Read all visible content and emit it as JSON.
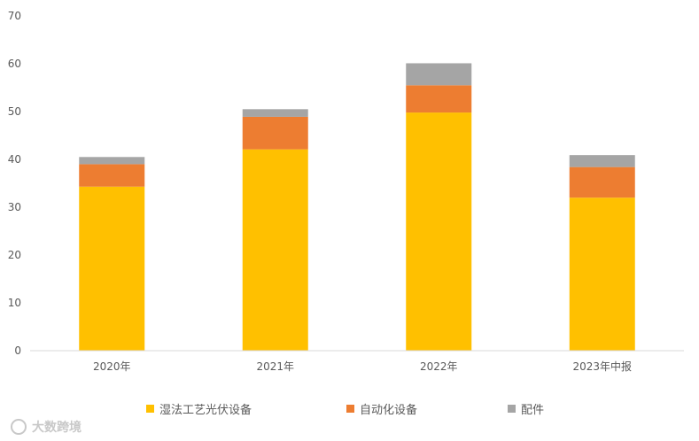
{
  "chart_data": {
    "type": "bar",
    "stacked": true,
    "categories": [
      "2020年",
      "2021年",
      "2022年",
      "2023年中报"
    ],
    "series": [
      {
        "name": "湿法工艺光伏设备",
        "color": "#FFC000",
        "values": [
          34.3,
          42.1,
          49.8,
          32.0
        ]
      },
      {
        "name": "自动化设备",
        "color": "#ED7D31",
        "values": [
          4.7,
          6.8,
          5.7,
          6.4
        ]
      },
      {
        "name": "配件",
        "color": "#A5A5A5",
        "values": [
          1.5,
          1.6,
          4.6,
          2.5
        ]
      }
    ],
    "y_ticks": [
      "0",
      "10",
      "20",
      "30",
      "40",
      "50",
      "60",
      "70"
    ],
    "ylim": [
      0,
      70
    ],
    "grid": false,
    "legend_position": "bottom"
  },
  "watermark": {
    "text": "大数跨境"
  }
}
